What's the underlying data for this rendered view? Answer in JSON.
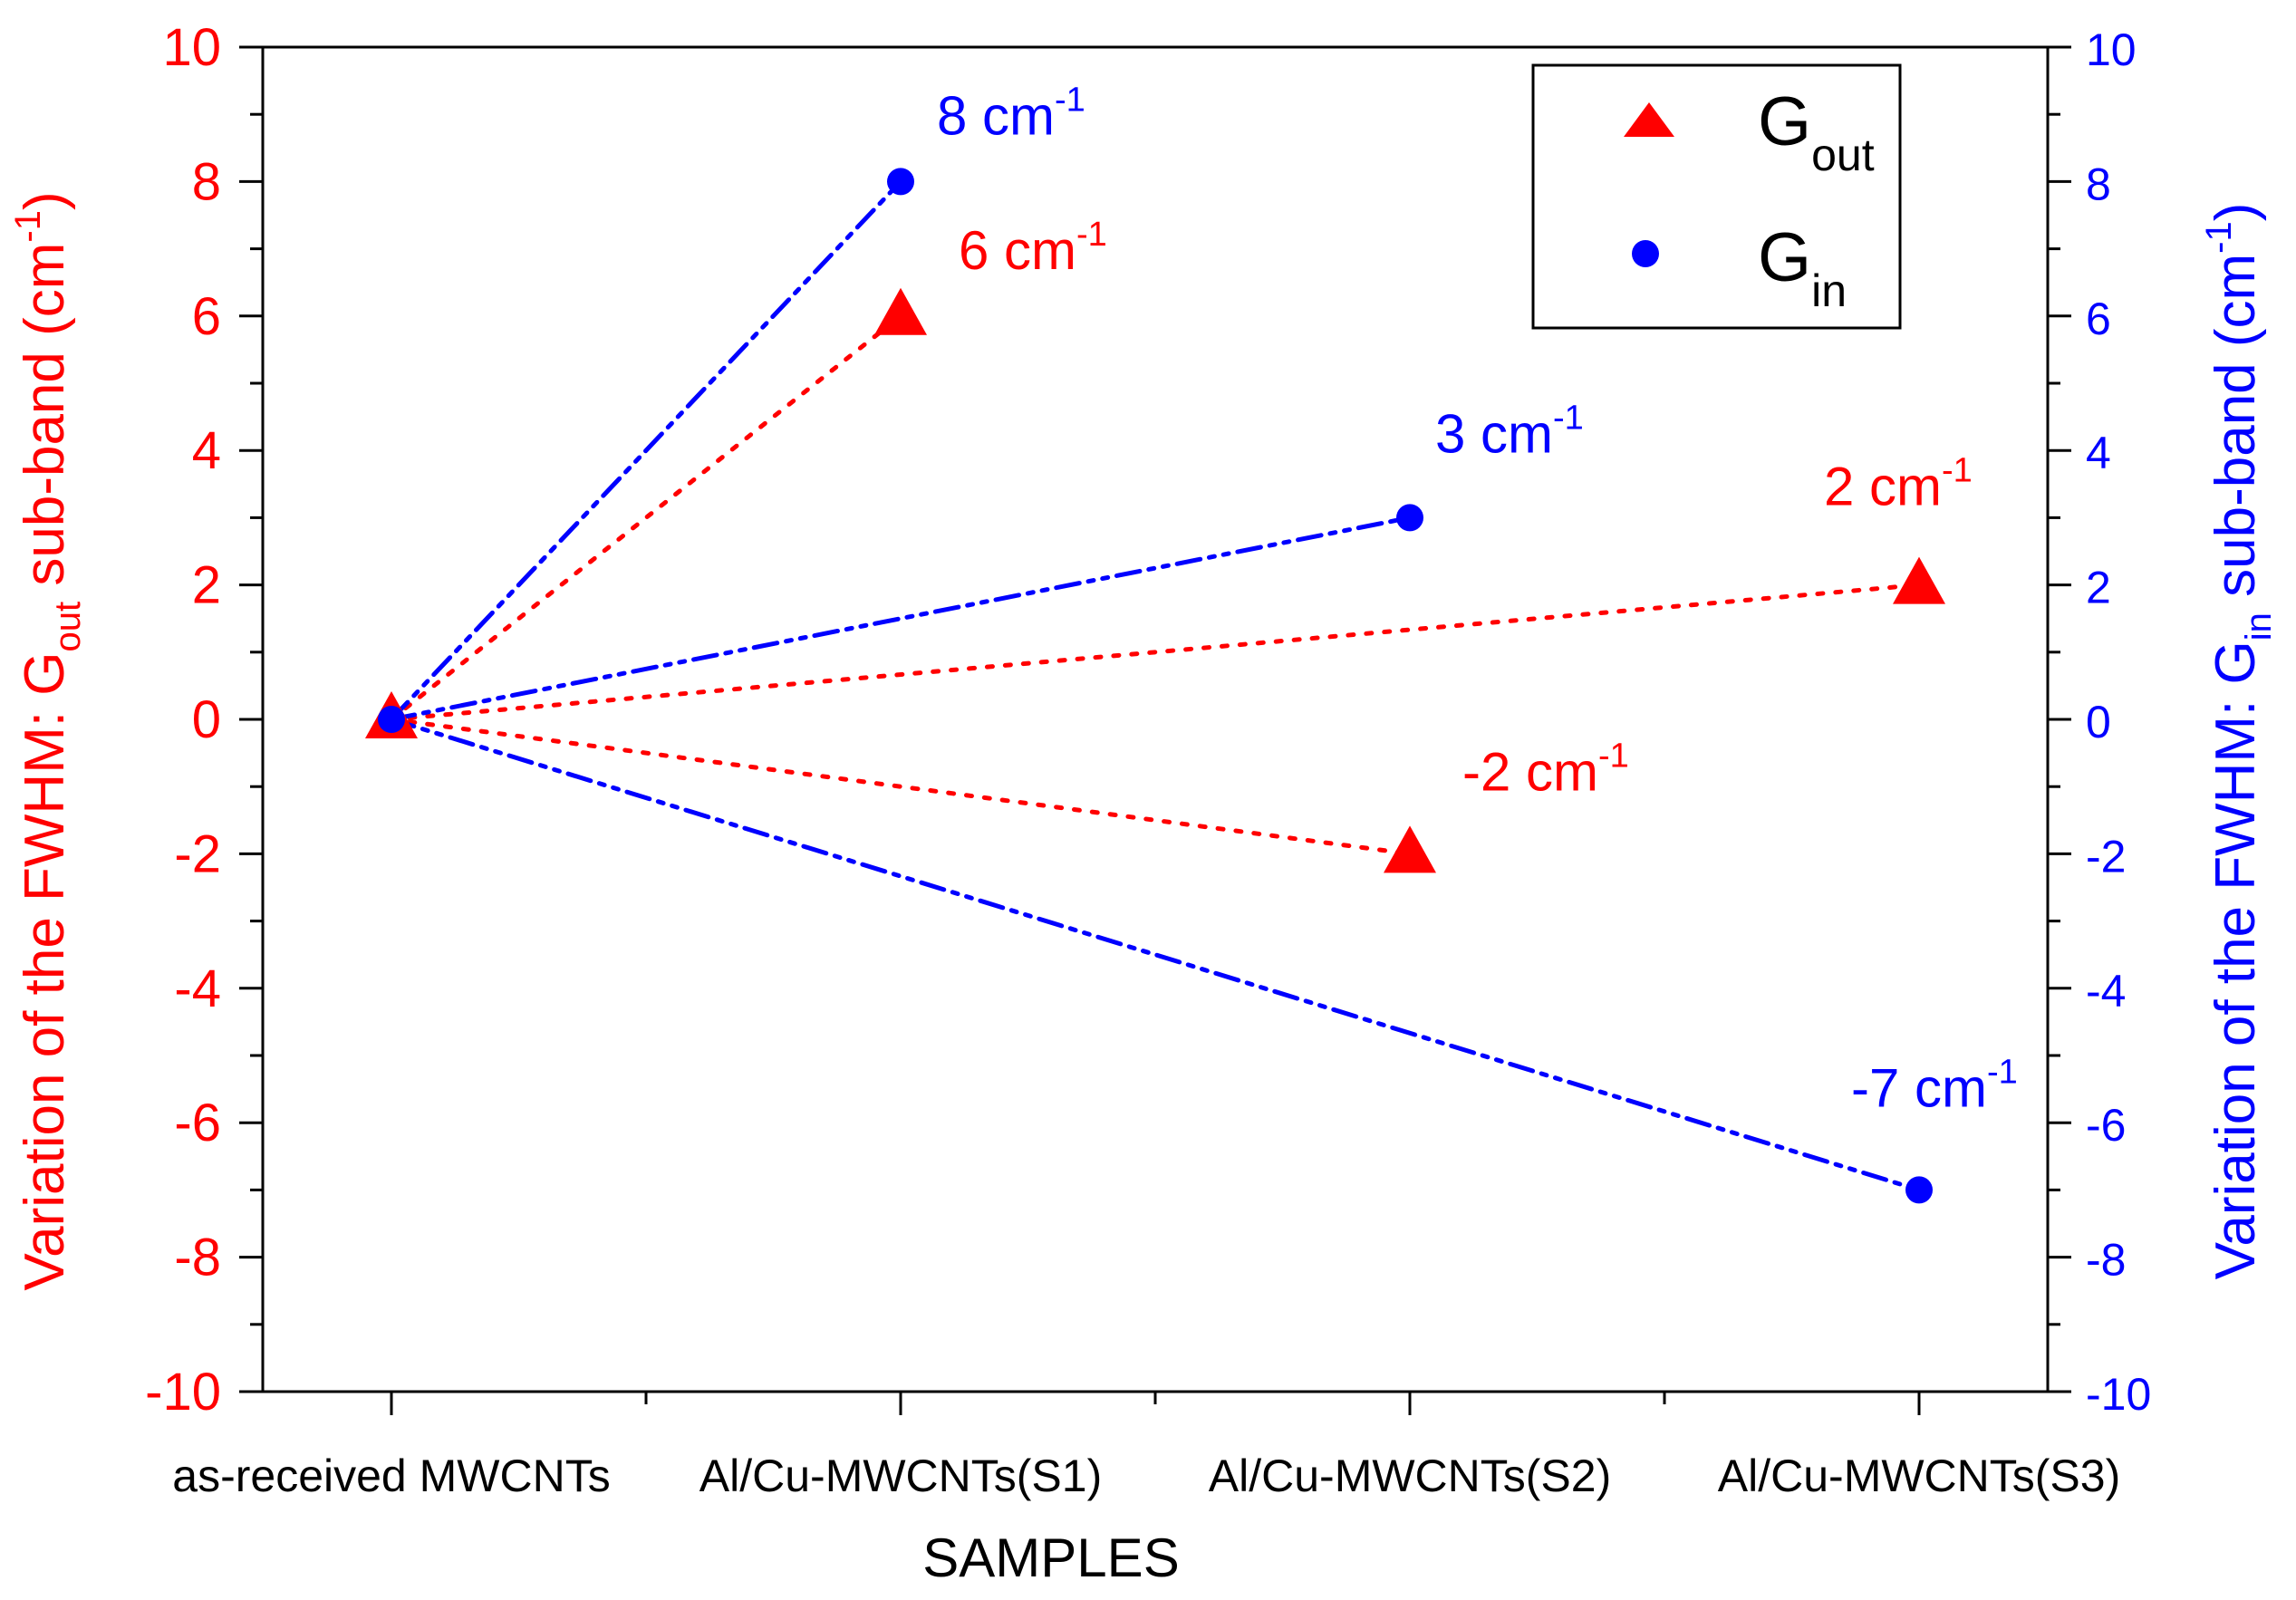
{
  "chart_data": {
    "type": "line",
    "categories": [
      "as-received MWCNTs",
      "Al/Cu-MWCNTs(S1)",
      "Al/Cu-MWCNTs(S2)",
      "Al/Cu-MWCNTs(S3)"
    ],
    "xlabel": "SAMPLES",
    "ylabel_left": {
      "prefix": "Variation of the FWHM: G",
      "sub": "out",
      "suffix": " sub-band (cm",
      "sup": "-1",
      "end": ")"
    },
    "ylabel_right": {
      "prefix": "Variation of the FWHM: G",
      "sub": "in",
      "suffix": " sub-band (cm",
      "sup": "-1",
      "end": ")"
    },
    "ylim": [
      -10,
      10
    ],
    "y_ticks": [
      -10,
      -8,
      -6,
      -4,
      -2,
      0,
      2,
      4,
      6,
      8,
      10
    ],
    "series": [
      {
        "name": "G_out",
        "legend_main": "G",
        "legend_sub": "out",
        "marker": "triangle",
        "color": "#ff0000",
        "axis": "left",
        "values": [
          0,
          6,
          -2,
          2
        ],
        "line_style": "dotted",
        "annotations": [
          {
            "index": 1,
            "value": "6 cm",
            "sup": "-1"
          },
          {
            "index": 2,
            "value": "-2 cm",
            "sup": "-1"
          },
          {
            "index": 3,
            "value": "2 cm",
            "sup": "-1"
          }
        ]
      },
      {
        "name": "G_in",
        "legend_main": "G",
        "legend_sub": "in",
        "marker": "circle",
        "color": "#0000ff",
        "axis": "right",
        "values": [
          0,
          8,
          3,
          -7
        ],
        "line_style": "dash-dot-dot",
        "annotations": [
          {
            "index": 1,
            "value": "8 cm",
            "sup": "-1"
          },
          {
            "index": 2,
            "value": "3 cm",
            "sup": "-1"
          },
          {
            "index": 3,
            "value": "-7 cm",
            "sup": "-1"
          }
        ]
      }
    ],
    "legend_position": "top-right",
    "colors": {
      "left_axis": "#ff0000",
      "right_axis": "#0000ff",
      "frame": "#000000"
    }
  }
}
